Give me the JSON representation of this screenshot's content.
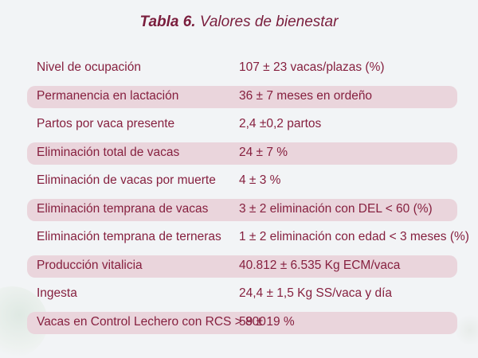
{
  "title": {
    "bold": "Tabla 6.",
    "text": " Valores de bienestar"
  },
  "rows": [
    {
      "label": "Nivel de ocupación",
      "value": "107 ± 23 vacas/plazas (%)"
    },
    {
      "label": "Permanencia en lactación",
      "value": "36 ± 7 meses en ordeño"
    },
    {
      "label": "Partos por vaca presente",
      "value": "2,4 ±0,2  partos"
    },
    {
      "label": "Eliminación total de vacas",
      "value": "24 ± 7 %"
    },
    {
      "label": "Eliminación de vacas por muerte",
      "value": "4 ± 3 %"
    },
    {
      "label": "Eliminación temprana de vacas",
      "value": "3 ± 2 eliminación con DEL < 60 (%)"
    },
    {
      "label": "Eliminación temprana de terneras",
      "value": "1 ± 2 eliminación con edad < 3 meses (%)"
    },
    {
      "label": "Producción vitalicia",
      "value": "40.812 ± 6.535 Kg ECM/vaca"
    },
    {
      "label": "Ingesta",
      "value": "24,4 ± 1,5 Kg SS/vaca y día"
    },
    {
      "label": "Vacas en Control Lechero con RCS > 800",
      "value": "59 ± 19 %"
    }
  ],
  "colors": {
    "text": "#86203f",
    "band": "#ead5dc",
    "background": "#f2f4f6"
  }
}
